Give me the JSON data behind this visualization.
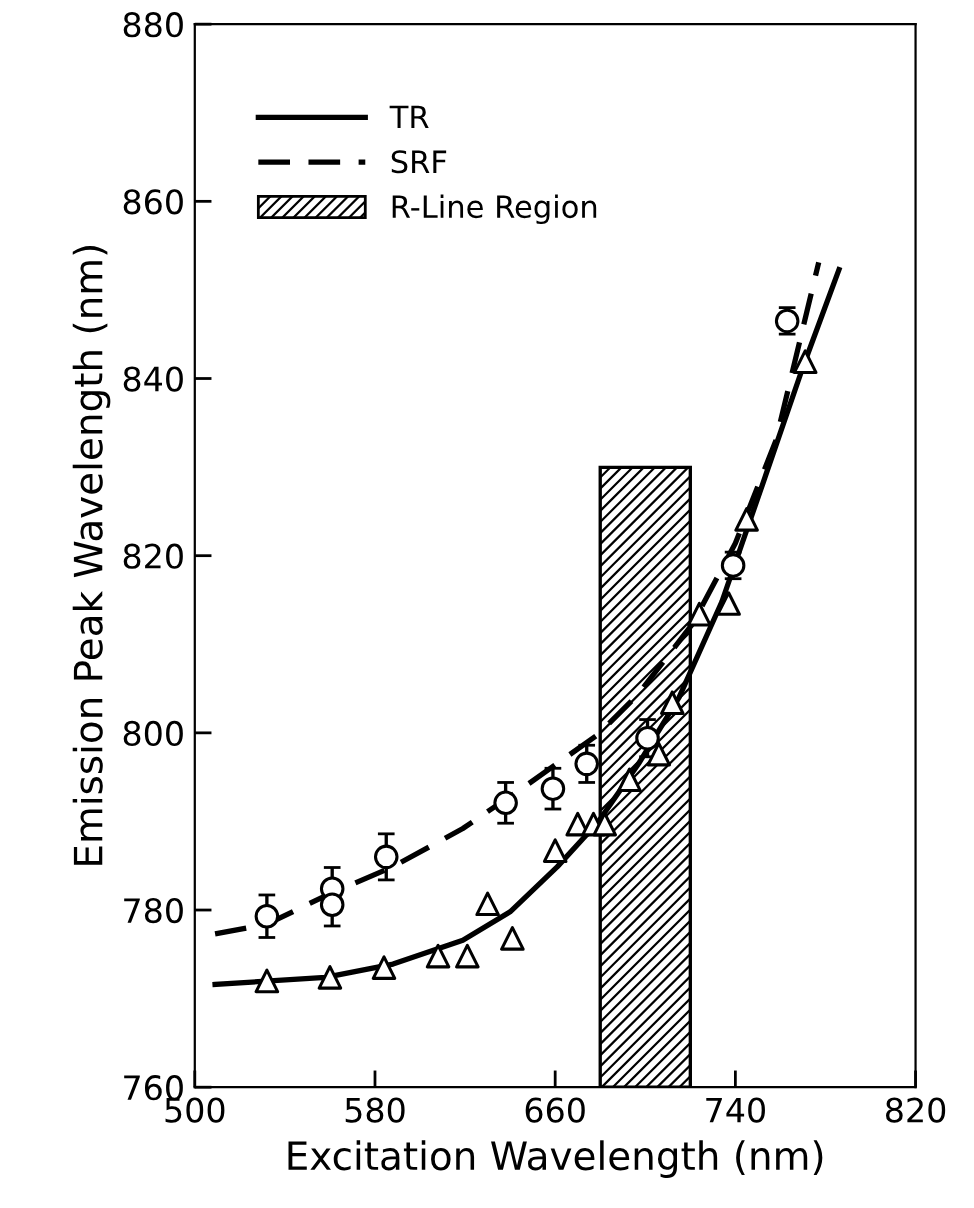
{
  "chart_data": {
    "type": "line",
    "xlabel": "Excitation Wavelength (nm)",
    "ylabel": "Emission Peak Wavelength (nm)",
    "xlim": [
      500,
      820
    ],
    "xticks": [
      500,
      580,
      660,
      740,
      820
    ],
    "ylim": [
      760,
      880
    ],
    "yticks": [
      760,
      780,
      800,
      820,
      840,
      860,
      880
    ],
    "grid": false,
    "legend": "top left",
    "series": [
      {
        "name": "TR",
        "color": "#000000",
        "line_style": "solid",
        "x": [
          509,
          558,
          588,
          619,
          640,
          661,
          679,
          697,
          715,
          734,
          752,
          770,
          786
        ],
        "values": [
          771.6,
          772.4,
          773.9,
          776.6,
          779.8,
          784.9,
          789.9,
          796.5,
          804,
          814.8,
          828,
          841.3,
          852.3
        ]
      },
      {
        "name": "SRF",
        "color": "#000000",
        "line_style": "dashed",
        "x": [
          509,
          532,
          558,
          588,
          619,
          649,
          679,
          697,
          721,
          740,
          758,
          777
        ],
        "values": [
          777.3,
          778.4,
          781.6,
          784.9,
          789.2,
          794.4,
          799.8,
          804.4,
          812.3,
          821.4,
          833,
          853.1
        ]
      },
      {
        "type": "scatter",
        "marker": "triangle",
        "color": "#000000",
        "x": [
          532,
          560,
          584,
          608,
          621,
          630,
          641,
          660,
          670,
          677,
          682,
          693,
          706,
          712,
          724,
          737,
          745,
          771
        ],
        "values": [
          772,
          772.4,
          773.5,
          774.8,
          774.8,
          780.7,
          776.8,
          786.7,
          789.7,
          789.7,
          789.7,
          794.7,
          797.6,
          803.4,
          813.4,
          814.6,
          824.1,
          841.9
        ]
      },
      {
        "type": "scatter",
        "marker": "circle",
        "color": "#000000",
        "x": [
          532,
          561,
          561,
          585,
          638,
          659,
          674,
          701,
          739,
          763
        ],
        "values": [
          779.3,
          782.4,
          780.6,
          786,
          792.1,
          793.7,
          796.5,
          799.4,
          818.9,
          846.5
        ],
        "errors": [
          2.4,
          2.4,
          2.4,
          2.6,
          2.3,
          2.3,
          2.1,
          2.1,
          1.5,
          1.5
        ]
      }
    ],
    "bands": [
      {
        "axis": "x",
        "from": 680,
        "to": 720,
        "label": "R-Line Region",
        "color": "#000000"
      }
    ]
  }
}
